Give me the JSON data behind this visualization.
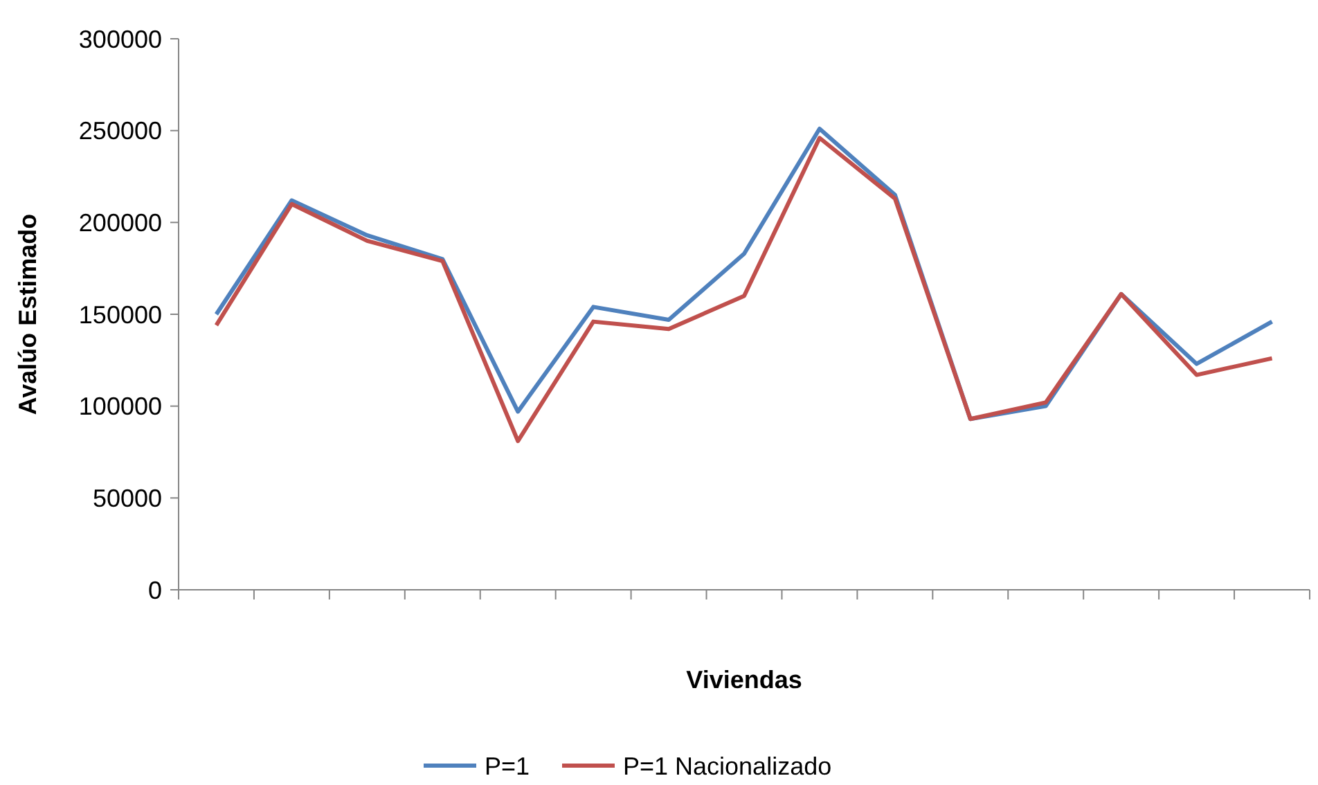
{
  "chart_data": {
    "type": "line",
    "xlabel": "Viviendas",
    "ylabel": "Avalúo Estimado",
    "categories": [
      null,
      null,
      null,
      null,
      null,
      null,
      null,
      null,
      null,
      null,
      null,
      null,
      null,
      null,
      null
    ],
    "series": [
      {
        "name": "P=1",
        "color": "#4f81bd",
        "values": [
          150000,
          212000,
          193000,
          180000,
          97000,
          154000,
          147000,
          183000,
          251000,
          215000,
          93000,
          100000,
          161000,
          123000,
          146000
        ]
      },
      {
        "name": "P=1 Nacionalizado",
        "color": "#c0504d",
        "values": [
          144000,
          210000,
          190000,
          179000,
          81000,
          146000,
          142000,
          160000,
          246000,
          213000,
          93000,
          102000,
          161000,
          117000,
          126000
        ]
      }
    ],
    "ylim": [
      0,
      300000
    ],
    "yticks": [
      0,
      50000,
      100000,
      150000,
      200000,
      250000,
      300000
    ],
    "grid": false,
    "legend": "bottom",
    "marker": "none",
    "line_style": "solid"
  }
}
